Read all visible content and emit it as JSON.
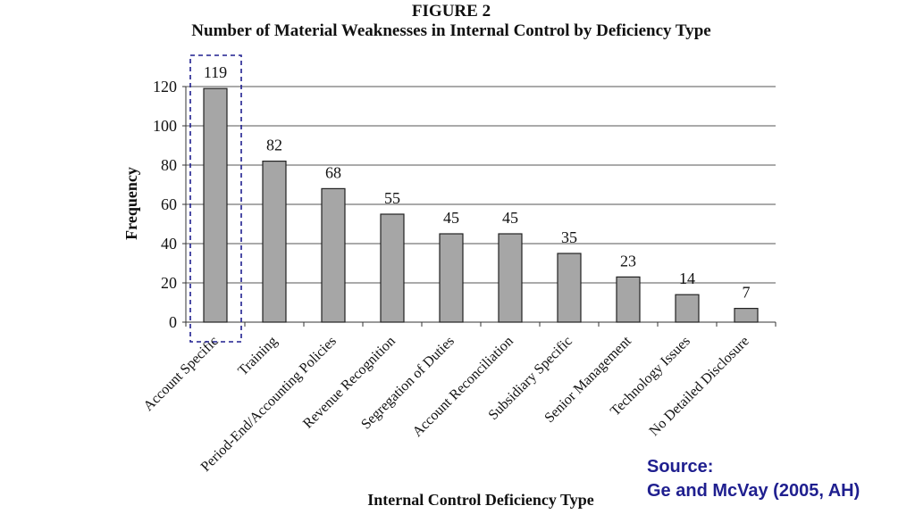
{
  "figure": {
    "label": "FIGURE 2",
    "title": "Number of Material Weaknesses in Internal Control by Deficiency Type"
  },
  "chart_data": {
    "type": "bar",
    "title": "Number of Material Weaknesses in Internal Control by Deficiency Type",
    "xlabel": "Internal Control Deficiency Type",
    "ylabel": "Frequency",
    "ylim": [
      0,
      120
    ],
    "yticks": [
      0,
      20,
      40,
      60,
      80,
      100,
      120
    ],
    "grid": true,
    "categories": [
      "Account Specific",
      "Training",
      "Period-End/Accounting Policies",
      "Revenue Recognition",
      "Segregation of Duties",
      "Account Reconciliation",
      "Subsidiary Specific",
      "Senior Management",
      "Technology Issues",
      "No Detailed Disclosure"
    ],
    "values": [
      119,
      82,
      68,
      55,
      45,
      45,
      35,
      23,
      14,
      7
    ],
    "bar_color": "#a6a6a6",
    "highlight": {
      "category": "Account Specific",
      "color": "#1f1f8f",
      "style": "dashed box"
    }
  },
  "source": {
    "line1": "Source:",
    "line2": "Ge and McVay (2005, AH)",
    "color": "#1f1f8f"
  }
}
